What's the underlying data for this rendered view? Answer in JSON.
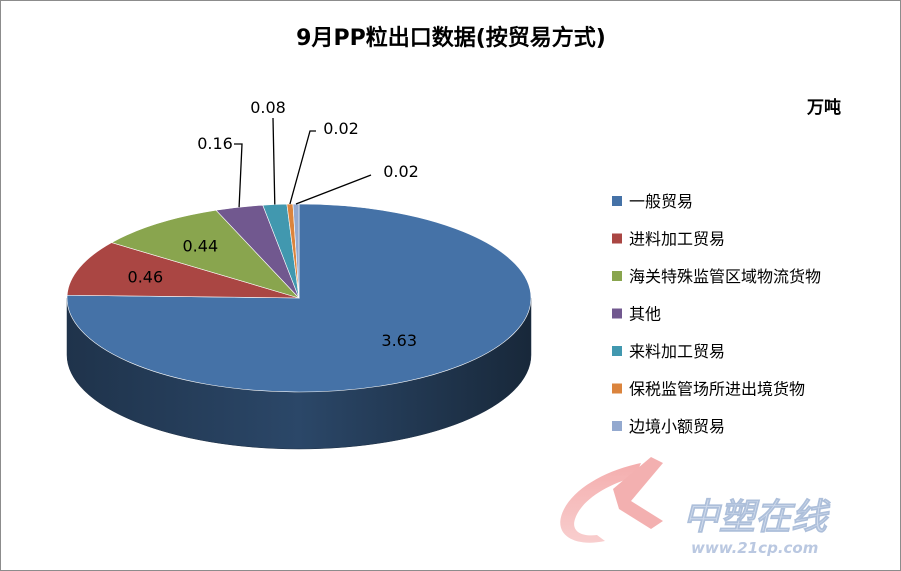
{
  "chart_data": {
    "type": "pie",
    "title": "9月PP粒出口数据(按贸易方式)",
    "unit": "万吨",
    "categories": [
      "一般贸易",
      "进料加工贸易",
      "海关特殊监管区域物流货物",
      "其他",
      "来料加工贸易",
      "保税监管场所进出境货物",
      "边境小额贸易"
    ],
    "values": [
      3.63,
      0.46,
      0.44,
      0.16,
      0.08,
      0.02,
      0.02
    ],
    "value_labels": [
      "3.63",
      "0.46",
      "0.44",
      "0.16",
      "0.08",
      "0.02",
      "0.02"
    ],
    "colors": [
      "#4572A7",
      "#AA4643",
      "#89A54E",
      "#71588F",
      "#4198AF",
      "#DB843D",
      "#93A9CF"
    ],
    "style": "3d",
    "legend_position": "right"
  },
  "watermark": {
    "name": "中塑在线",
    "url": "www.21cp.com"
  }
}
